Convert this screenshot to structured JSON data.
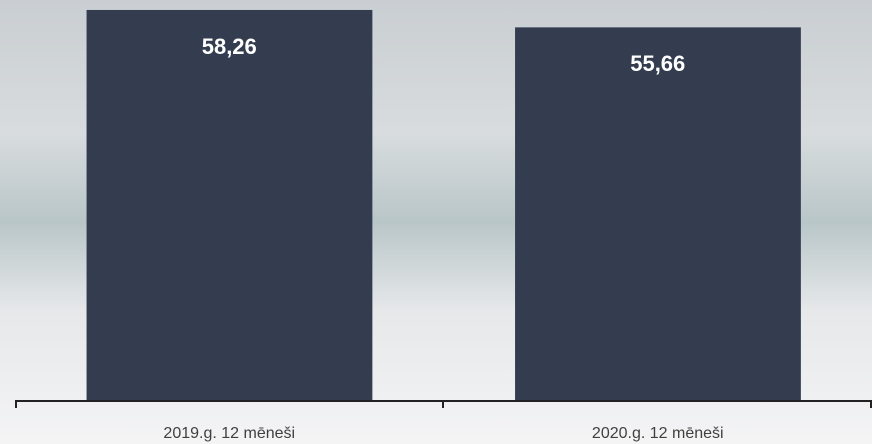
{
  "chart_data": {
    "type": "bar",
    "categories": [
      "2019.g. 12 mēneši",
      "2020.g. 12 mēneši"
    ],
    "values": [
      58.26,
      55.66
    ],
    "value_labels": [
      "58,26",
      "55,66"
    ],
    "color": "#333d4f",
    "ylim": [
      0,
      59
    ]
  }
}
